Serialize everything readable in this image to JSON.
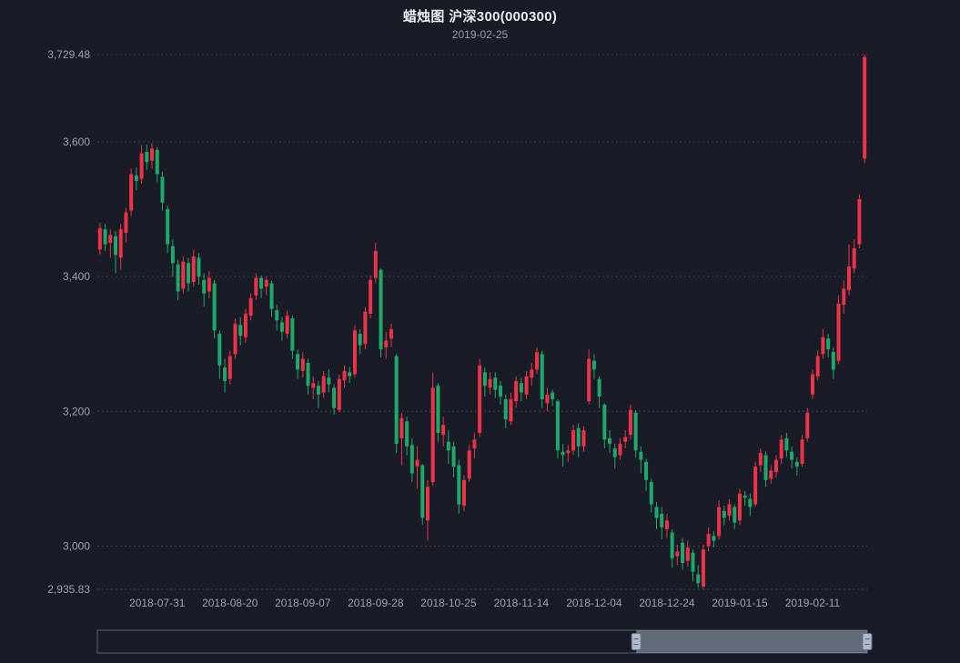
{
  "colors": {
    "background": "#191c26",
    "title": "#e8ecf4",
    "subtitle": "#949cab",
    "axis_label": "#99a2b2",
    "grid_line": "#3a4150",
    "up": "#eb3349",
    "down": "#1fa86c",
    "datazoom_filler": "rgba(167,183,204,0.5)",
    "datazoom_border": "#5a6170",
    "datazoom_handle": "#aeb9cc"
  },
  "chart_data": {
    "type": "candlestick",
    "title": "蜡烛图 沪深300(000300)",
    "subtitle": "2019-02-25",
    "xlabel": "",
    "ylabel": "",
    "grid": "dotted horizontal gridlines",
    "legend": "none",
    "ylim": [
      2935.83,
      3729.48
    ],
    "y_ticks": [
      {
        "text": "3,729.48",
        "value": 3729.48
      },
      {
        "text": "3,600",
        "value": 3600
      },
      {
        "text": "3,400",
        "value": 3400
      },
      {
        "text": "3,200",
        "value": 3200
      },
      {
        "text": "3,000",
        "value": 3000
      },
      {
        "text": "2,935.83",
        "value": 2935.83
      }
    ],
    "x_ticks": [
      {
        "text": "2018-07-31",
        "index": 11
      },
      {
        "text": "2018-08-20",
        "index": 25
      },
      {
        "text": "2018-09-07",
        "index": 39
      },
      {
        "text": "2018-09-28",
        "index": 53
      },
      {
        "text": "2018-10-25",
        "index": 67
      },
      {
        "text": "2018-11-14",
        "index": 81
      },
      {
        "text": "2018-12-04",
        "index": 95
      },
      {
        "text": "2018-12-24",
        "index": 109
      },
      {
        "text": "2019-01-15",
        "index": 123
      },
      {
        "text": "2019-02-11",
        "index": 137
      }
    ],
    "datazoom": {
      "start_percent": 70,
      "end_percent": 100
    },
    "ohlc_format": "[open, close, low, high]",
    "dates": [
      "2018-07-16",
      "2018-07-17",
      "2018-07-18",
      "2018-07-19",
      "2018-07-20",
      "2018-07-23",
      "2018-07-24",
      "2018-07-25",
      "2018-07-26",
      "2018-07-27",
      "2018-07-30",
      "2018-07-31",
      "2018-08-01",
      "2018-08-02",
      "2018-08-03",
      "2018-08-06",
      "2018-08-07",
      "2018-08-08",
      "2018-08-09",
      "2018-08-10",
      "2018-08-13",
      "2018-08-14",
      "2018-08-15",
      "2018-08-16",
      "2018-08-17",
      "2018-08-20",
      "2018-08-21",
      "2018-08-22",
      "2018-08-23",
      "2018-08-24",
      "2018-08-27",
      "2018-08-28",
      "2018-08-29",
      "2018-08-30",
      "2018-08-31",
      "2018-09-03",
      "2018-09-04",
      "2018-09-05",
      "2018-09-06",
      "2018-09-07",
      "2018-09-10",
      "2018-09-11",
      "2018-09-12",
      "2018-09-13",
      "2018-09-14",
      "2018-09-17",
      "2018-09-18",
      "2018-09-19",
      "2018-09-20",
      "2018-09-21",
      "2018-09-25",
      "2018-09-26",
      "2018-09-27",
      "2018-09-28",
      "2018-10-08",
      "2018-10-09",
      "2018-10-10",
      "2018-10-11",
      "2018-10-12",
      "2018-10-15",
      "2018-10-16",
      "2018-10-17",
      "2018-10-18",
      "2018-10-19",
      "2018-10-22",
      "2018-10-23",
      "2018-10-24",
      "2018-10-25",
      "2018-10-26",
      "2018-10-29",
      "2018-10-30",
      "2018-10-31",
      "2018-11-01",
      "2018-11-02",
      "2018-11-05",
      "2018-11-06",
      "2018-11-07",
      "2018-11-08",
      "2018-11-09",
      "2018-11-12",
      "2018-11-13",
      "2018-11-14",
      "2018-11-15",
      "2018-11-16",
      "2018-11-19",
      "2018-11-20",
      "2018-11-21",
      "2018-11-22",
      "2018-11-23",
      "2018-11-26",
      "2018-11-27",
      "2018-11-28",
      "2018-11-29",
      "2018-11-30",
      "2018-12-03",
      "2018-12-04",
      "2018-12-05",
      "2018-12-06",
      "2018-12-07",
      "2018-12-10",
      "2018-12-11",
      "2018-12-12",
      "2018-12-13",
      "2018-12-14",
      "2018-12-17",
      "2018-12-18",
      "2018-12-19",
      "2018-12-20",
      "2018-12-21",
      "2018-12-24",
      "2018-12-25",
      "2018-12-26",
      "2018-12-27",
      "2018-12-28",
      "2019-01-02",
      "2019-01-03",
      "2019-01-04",
      "2019-01-07",
      "2019-01-08",
      "2019-01-09",
      "2019-01-10",
      "2019-01-11",
      "2019-01-14",
      "2019-01-15",
      "2019-01-16",
      "2019-01-17",
      "2019-01-18",
      "2019-01-21",
      "2019-01-22",
      "2019-01-23",
      "2019-01-24",
      "2019-01-25",
      "2019-01-28",
      "2019-01-29",
      "2019-01-30",
      "2019-01-31",
      "2019-02-01",
      "2019-02-11",
      "2019-02-12",
      "2019-02-13",
      "2019-02-14",
      "2019-02-15",
      "2019-02-18",
      "2019-02-19",
      "2019-02-20",
      "2019-02-21",
      "2019-02-22",
      "2019-02-25"
    ],
    "ohlc": [
      [
        3440,
        3472,
        3432,
        3480
      ],
      [
        3470,
        3448,
        3438,
        3478
      ],
      [
        3450,
        3462,
        3428,
        3470
      ],
      [
        3460,
        3432,
        3405,
        3468
      ],
      [
        3428,
        3470,
        3410,
        3478
      ],
      [
        3465,
        3495,
        3450,
        3502
      ],
      [
        3498,
        3552,
        3490,
        3560
      ],
      [
        3550,
        3542,
        3528,
        3562
      ],
      [
        3545,
        3583,
        3538,
        3595
      ],
      [
        3585,
        3570,
        3558,
        3596
      ],
      [
        3572,
        3590,
        3560,
        3598
      ],
      [
        3588,
        3552,
        3540,
        3592
      ],
      [
        3548,
        3510,
        3498,
        3556
      ],
      [
        3500,
        3448,
        3435,
        3505
      ],
      [
        3445,
        3420,
        3400,
        3455
      ],
      [
        3418,
        3378,
        3365,
        3425
      ],
      [
        3382,
        3422,
        3375,
        3430
      ],
      [
        3420,
        3390,
        3378,
        3428
      ],
      [
        3392,
        3430,
        3385,
        3440
      ],
      [
        3428,
        3400,
        3388,
        3435
      ],
      [
        3395,
        3375,
        3355,
        3405
      ],
      [
        3378,
        3398,
        3368,
        3408
      ],
      [
        3390,
        3320,
        3308,
        3395
      ],
      [
        3315,
        3268,
        3248,
        3320
      ],
      [
        3265,
        3245,
        3228,
        3278
      ],
      [
        3248,
        3282,
        3240,
        3290
      ],
      [
        3285,
        3330,
        3278,
        3338
      ],
      [
        3328,
        3312,
        3298,
        3340
      ],
      [
        3310,
        3345,
        3302,
        3352
      ],
      [
        3342,
        3368,
        3335,
        3375
      ],
      [
        3372,
        3398,
        3365,
        3405
      ],
      [
        3398,
        3382,
        3368,
        3402
      ],
      [
        3385,
        3395,
        3372,
        3400
      ],
      [
        3390,
        3352,
        3340,
        3394
      ],
      [
        3350,
        3335,
        3320,
        3358
      ],
      [
        3332,
        3318,
        3305,
        3340
      ],
      [
        3315,
        3342,
        3308,
        3350
      ],
      [
        3338,
        3290,
        3278,
        3342
      ],
      [
        3285,
        3262,
        3248,
        3292
      ],
      [
        3260,
        3278,
        3250,
        3288
      ],
      [
        3272,
        3238,
        3225,
        3278
      ],
      [
        3235,
        3242,
        3218,
        3252
      ],
      [
        3238,
        3225,
        3205,
        3245
      ],
      [
        3228,
        3252,
        3220,
        3260
      ],
      [
        3250,
        3240,
        3228,
        3262
      ],
      [
        3235,
        3205,
        3195,
        3240
      ],
      [
        3202,
        3248,
        3198,
        3255
      ],
      [
        3246,
        3260,
        3235,
        3268
      ],
      [
        3258,
        3252,
        3242,
        3266
      ],
      [
        3255,
        3320,
        3250,
        3328
      ],
      [
        3315,
        3298,
        3285,
        3322
      ],
      [
        3300,
        3348,
        3292,
        3355
      ],
      [
        3345,
        3395,
        3338,
        3402
      ],
      [
        3398,
        3438,
        3390,
        3450
      ],
      [
        3410,
        3292,
        3280,
        3412
      ],
      [
        3295,
        3305,
        3278,
        3318
      ],
      [
        3308,
        3322,
        3295,
        3330
      ],
      [
        3282,
        3152,
        3138,
        3285
      ],
      [
        3160,
        3190,
        3120,
        3198
      ],
      [
        3185,
        3148,
        3135,
        3192
      ],
      [
        3150,
        3108,
        3095,
        3160
      ],
      [
        3118,
        3128,
        3085,
        3148
      ],
      [
        3120,
        3042,
        3032,
        3122
      ],
      [
        3038,
        3088,
        3008,
        3098
      ],
      [
        3095,
        3235,
        3090,
        3258
      ],
      [
        3238,
        3168,
        3155,
        3242
      ],
      [
        3165,
        3180,
        3148,
        3192
      ],
      [
        3155,
        3142,
        3122,
        3172
      ],
      [
        3148,
        3118,
        3102,
        3155
      ],
      [
        3120,
        3062,
        3048,
        3128
      ],
      [
        3060,
        3098,
        3052,
        3105
      ],
      [
        3100,
        3142,
        3095,
        3150
      ],
      [
        3145,
        3158,
        3130,
        3168
      ],
      [
        3168,
        3268,
        3162,
        3278
      ],
      [
        3258,
        3238,
        3222,
        3265
      ],
      [
        3235,
        3248,
        3225,
        3258
      ],
      [
        3250,
        3232,
        3220,
        3258
      ],
      [
        3238,
        3222,
        3210,
        3245
      ],
      [
        3218,
        3188,
        3175,
        3225
      ],
      [
        3185,
        3218,
        3180,
        3228
      ],
      [
        3215,
        3245,
        3205,
        3252
      ],
      [
        3242,
        3228,
        3215,
        3250
      ],
      [
        3225,
        3252,
        3218,
        3260
      ],
      [
        3250,
        3262,
        3238,
        3272
      ],
      [
        3262,
        3288,
        3255,
        3295
      ],
      [
        3285,
        3218,
        3205,
        3290
      ],
      [
        3212,
        3225,
        3200,
        3235
      ],
      [
        3228,
        3218,
        3208,
        3232
      ],
      [
        3215,
        3142,
        3130,
        3218
      ],
      [
        3140,
        3135,
        3118,
        3152
      ],
      [
        3138,
        3142,
        3125,
        3150
      ],
      [
        3142,
        3172,
        3135,
        3180
      ],
      [
        3175,
        3148,
        3132,
        3182
      ],
      [
        3148,
        3172,
        3140,
        3178
      ],
      [
        3215,
        3278,
        3210,
        3292
      ],
      [
        3275,
        3262,
        3248,
        3285
      ],
      [
        3248,
        3222,
        3205,
        3252
      ],
      [
        3210,
        3158,
        3145,
        3212
      ],
      [
        3160,
        3152,
        3138,
        3172
      ],
      [
        3145,
        3132,
        3115,
        3152
      ],
      [
        3135,
        3152,
        3128,
        3160
      ],
      [
        3155,
        3162,
        3145,
        3172
      ],
      [
        3165,
        3202,
        3158,
        3210
      ],
      [
        3198,
        3142,
        3132,
        3202
      ],
      [
        3140,
        3128,
        3108,
        3148
      ],
      [
        3125,
        3098,
        3082,
        3130
      ],
      [
        3095,
        3062,
        3050,
        3100
      ],
      [
        3058,
        3042,
        3025,
        3065
      ],
      [
        3048,
        3028,
        3010,
        3058
      ],
      [
        3025,
        3038,
        3012,
        3048
      ],
      [
        3020,
        2982,
        2968,
        3025
      ],
      [
        2985,
        2992,
        2972,
        3002
      ],
      [
        3005,
        2975,
        2965,
        3012
      ],
      [
        2978,
        2998,
        2970,
        3008
      ],
      [
        2990,
        2962,
        2948,
        2995
      ],
      [
        2958,
        2945,
        2938,
        2972
      ],
      [
        2940,
        2995,
        2935.83,
        3002
      ],
      [
        3000,
        3018,
        2992,
        3028
      ],
      [
        3015,
        3008,
        2998,
        3022
      ],
      [
        3015,
        3058,
        3010,
        3068
      ],
      [
        3052,
        3042,
        3030,
        3060
      ],
      [
        3045,
        3062,
        3038,
        3070
      ],
      [
        3058,
        3035,
        3025,
        3062
      ],
      [
        3038,
        3078,
        3032,
        3085
      ],
      [
        3075,
        3072,
        3060,
        3082
      ],
      [
        3070,
        3058,
        3045,
        3078
      ],
      [
        3062,
        3118,
        3058,
        3125
      ],
      [
        3120,
        3138,
        3110,
        3145
      ],
      [
        3135,
        3098,
        3088,
        3140
      ],
      [
        3100,
        3112,
        3092,
        3120
      ],
      [
        3110,
        3128,
        3102,
        3135
      ],
      [
        3130,
        3158,
        3122,
        3165
      ],
      [
        3160,
        3142,
        3132,
        3168
      ],
      [
        3140,
        3128,
        3115,
        3148
      ],
      [
        3125,
        3118,
        3105,
        3132
      ],
      [
        3122,
        3158,
        3118,
        3165
      ],
      [
        3160,
        3198,
        3155,
        3205
      ],
      [
        3225,
        3255,
        3218,
        3262
      ],
      [
        3252,
        3282,
        3246,
        3290
      ],
      [
        3285,
        3310,
        3278,
        3322
      ],
      [
        3308,
        3292,
        3280,
        3315
      ],
      [
        3288,
        3262,
        3248,
        3295
      ],
      [
        3275,
        3360,
        3270,
        3372
      ],
      [
        3358,
        3382,
        3345,
        3395
      ],
      [
        3380,
        3415,
        3372,
        3448
      ],
      [
        3412,
        3442,
        3405,
        3455
      ],
      [
        3448,
        3515,
        3442,
        3522
      ],
      [
        3575,
        3726,
        3568,
        3729.48
      ]
    ]
  }
}
